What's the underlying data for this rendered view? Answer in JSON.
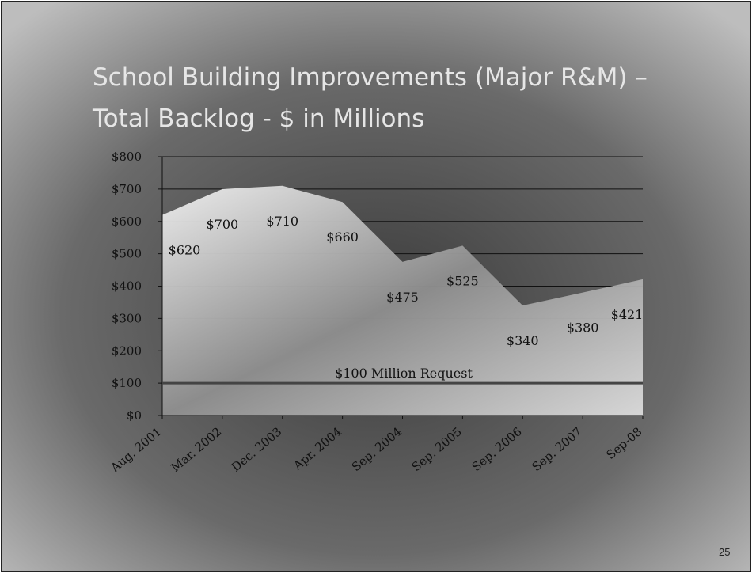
{
  "chart_data": {
    "type": "area",
    "title_lines": [
      "School Building Improvements (Major R&M) –",
      "Total Backlog - $ in Millions"
    ],
    "categories": [
      "Aug. 2001",
      "Mar. 2002",
      "Dec. 2003",
      "Apr. 2004",
      "Sep. 2004",
      "Sep. 2005",
      "Sep. 2006",
      "Sep. 2007",
      "Sep-08"
    ],
    "values": [
      620,
      700,
      710,
      660,
      475,
      525,
      340,
      380,
      421
    ],
    "value_labels": [
      "$620",
      "$700",
      "$710",
      "$660",
      "$475",
      "$525",
      "$340",
      "$380",
      "$421"
    ],
    "ylim": [
      0,
      800
    ],
    "yticks": [
      {
        "value": 0,
        "label": "$0"
      },
      {
        "value": 100,
        "label": "$100"
      },
      {
        "value": 200,
        "label": "$200"
      },
      {
        "value": 300,
        "label": "$300"
      },
      {
        "value": 400,
        "label": "$400"
      },
      {
        "value": 500,
        "label": "$500"
      },
      {
        "value": 600,
        "label": "$600"
      },
      {
        "value": 700,
        "label": "$700"
      },
      {
        "value": 800,
        "label": "$800"
      }
    ],
    "grid": true,
    "reference_line": {
      "value": 100,
      "label": "$100 Million Request"
    },
    "page_number": "25"
  }
}
